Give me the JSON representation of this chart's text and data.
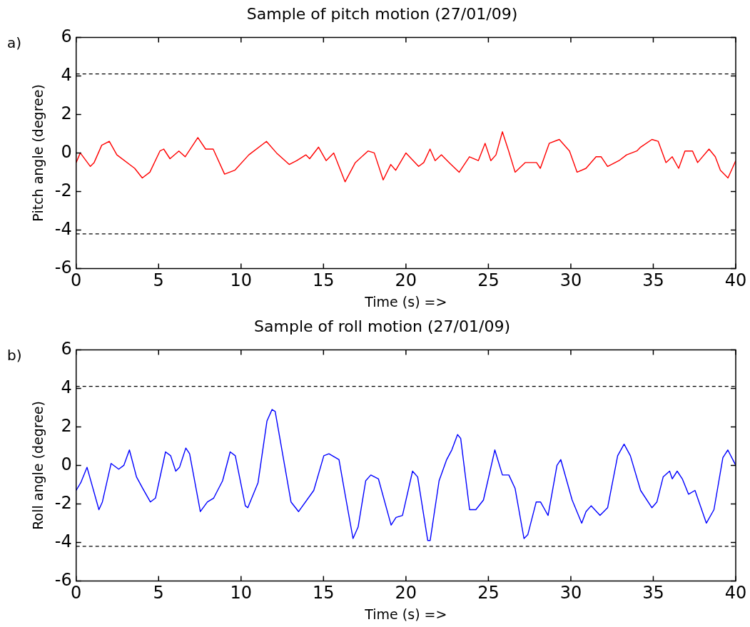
{
  "chart_data": [
    {
      "type": "line",
      "title": "Sample of pitch motion (27/01/09)",
      "xlabel": "Time (s) =>",
      "ylabel": "Pitch angle (degree)",
      "annotations": [
        "a)"
      ],
      "xlim": [
        0,
        40
      ],
      "xticks": [
        0,
        5,
        10,
        15,
        20,
        25,
        30,
        35,
        40
      ],
      "ylim": [
        -6,
        6
      ],
      "yticks": [
        -6,
        -4,
        -2,
        0,
        2,
        4,
        6
      ],
      "grid": false,
      "legend": false,
      "marker": "none",
      "line_style": "solid",
      "ref_lines": [
        {
          "axis": "y",
          "value": 4.1,
          "label": null,
          "color": "#000000",
          "line_style": "dashed"
        },
        {
          "axis": "y",
          "value": -4.2,
          "label": null,
          "color": "#000000",
          "line_style": "dashed"
        }
      ],
      "series": [
        {
          "color": "#ff0000",
          "x": [
            0,
            0.25,
            0.86,
            1.09,
            1.55,
            2.01,
            2.47,
            3.55,
            4.01,
            4.47,
            5.08,
            5.31,
            5.69,
            6.23,
            6.61,
            7.38,
            7.85,
            8.31,
            9.0,
            9.62,
            10.47,
            11.54,
            12.15,
            12.92,
            13.38,
            13.93,
            14.16,
            14.7,
            15.16,
            15.62,
            16.31,
            16.93,
            17.7,
            18.08,
            18.62,
            19.08,
            19.38,
            20.0,
            20.77,
            21.08,
            21.46,
            21.77,
            22.15,
            22.62,
            23.23,
            23.85,
            24.39,
            24.8,
            25.15,
            25.46,
            25.85,
            26.23,
            26.62,
            27.23,
            27.92,
            28.15,
            28.69,
            29.3,
            29.92,
            30.38,
            30.92,
            31.53,
            31.84,
            32.23,
            32.92,
            33.38,
            34.0,
            34.23,
            34.92,
            35.3,
            35.77,
            36.15,
            36.54,
            36.92,
            37.38,
            37.69,
            38.38,
            38.76,
            39.07,
            39.53,
            40.0
          ],
          "values": [
            -0.5,
            0.0,
            -0.7,
            -0.5,
            0.4,
            0.6,
            -0.1,
            -0.8,
            -1.3,
            -1.0,
            0.1,
            0.2,
            -0.3,
            0.1,
            -0.2,
            0.8,
            0.2,
            0.2,
            -1.1,
            -0.9,
            -0.1,
            0.6,
            0.0,
            -0.6,
            -0.4,
            -0.1,
            -0.3,
            0.3,
            -0.4,
            0.0,
            -1.5,
            -0.5,
            0.1,
            0.0,
            -1.4,
            -0.6,
            -0.9,
            0.0,
            -0.7,
            -0.5,
            0.2,
            -0.4,
            -0.1,
            -0.5,
            -1.0,
            -0.2,
            -0.4,
            0.5,
            -0.4,
            -0.1,
            1.1,
            0.1,
            -1.0,
            -0.5,
            -0.5,
            -0.8,
            0.5,
            0.7,
            0.1,
            -1.0,
            -0.8,
            -0.2,
            -0.2,
            -0.7,
            -0.4,
            -0.1,
            0.1,
            0.3,
            0.7,
            0.6,
            -0.5,
            -0.2,
            -0.8,
            0.1,
            0.1,
            -0.5,
            0.2,
            -0.2,
            -0.9,
            -1.3,
            -0.4
          ]
        }
      ]
    },
    {
      "type": "line",
      "title": "Sample of roll motion (27/01/09)",
      "xlabel": "Time (s) =>",
      "ylabel": "Roll angle (degree)",
      "annotations": [
        "b)"
      ],
      "xlim": [
        0,
        40
      ],
      "xticks": [
        0,
        5,
        10,
        15,
        20,
        25,
        30,
        35,
        40
      ],
      "ylim": [
        -6,
        6
      ],
      "yticks": [
        -6,
        -4,
        -2,
        0,
        2,
        4,
        6
      ],
      "grid": false,
      "legend": false,
      "marker": "none",
      "line_style": "solid",
      "ref_lines": [
        {
          "axis": "y",
          "value": 4.1,
          "label": null,
          "color": "#000000",
          "line_style": "dashed"
        },
        {
          "axis": "y",
          "value": -4.2,
          "label": null,
          "color": "#000000",
          "line_style": "dashed"
        }
      ],
      "series": [
        {
          "color": "#0000ff",
          "x": [
            0,
            0.28,
            0.66,
            1.38,
            1.59,
            2.12,
            2.58,
            2.89,
            3.23,
            3.66,
            4.04,
            4.5,
            4.81,
            5.42,
            5.73,
            6.04,
            6.27,
            6.65,
            6.88,
            7.53,
            7.96,
            8.34,
            8.88,
            9.34,
            9.65,
            10.26,
            10.41,
            11.03,
            11.57,
            11.88,
            12.07,
            13.03,
            13.49,
            14.41,
            15.02,
            15.33,
            15.94,
            16.33,
            16.79,
            17.1,
            17.56,
            17.87,
            18.33,
            19.1,
            19.4,
            19.79,
            20.4,
            20.71,
            21.32,
            21.47,
            22.01,
            22.47,
            22.78,
            23.13,
            23.32,
            23.86,
            24.24,
            24.7,
            25.39,
            25.85,
            26.24,
            26.62,
            27.16,
            27.39,
            27.9,
            28.16,
            28.62,
            29.16,
            29.39,
            30.08,
            30.66,
            30.92,
            31.23,
            31.77,
            32.23,
            32.84,
            33.23,
            33.61,
            34.23,
            34.92,
            35.22,
            35.6,
            35.99,
            36.15,
            36.45,
            36.76,
            37.14,
            37.53,
            38.22,
            38.68,
            39.22,
            39.52,
            40.0
          ],
          "values": [
            -1.3,
            -0.9,
            -0.1,
            -2.3,
            -1.9,
            0.1,
            -0.2,
            0.0,
            0.8,
            -0.6,
            -1.2,
            -1.9,
            -1.7,
            0.7,
            0.5,
            -0.3,
            -0.1,
            0.9,
            0.6,
            -2.4,
            -1.9,
            -1.7,
            -0.8,
            0.7,
            0.5,
            -2.1,
            -2.2,
            -0.9,
            2.3,
            2.9,
            2.8,
            -1.9,
            -2.4,
            -1.3,
            0.5,
            0.6,
            0.3,
            -1.6,
            -3.8,
            -3.2,
            -0.8,
            -0.5,
            -0.7,
            -3.1,
            -2.7,
            -2.6,
            -0.3,
            -0.6,
            -3.9,
            -3.9,
            -0.8,
            0.3,
            0.8,
            1.6,
            1.4,
            -2.3,
            -2.3,
            -1.8,
            0.8,
            -0.5,
            -0.5,
            -1.2,
            -3.8,
            -3.6,
            -1.9,
            -1.9,
            -2.6,
            0.0,
            0.3,
            -1.8,
            -3.0,
            -2.4,
            -2.1,
            -2.6,
            -2.2,
            0.5,
            1.1,
            0.5,
            -1.3,
            -2.2,
            -1.9,
            -0.6,
            -0.3,
            -0.7,
            -0.3,
            -0.7,
            -1.5,
            -1.3,
            -3.0,
            -2.3,
            0.4,
            0.8,
            0.0
          ]
        }
      ]
    }
  ]
}
